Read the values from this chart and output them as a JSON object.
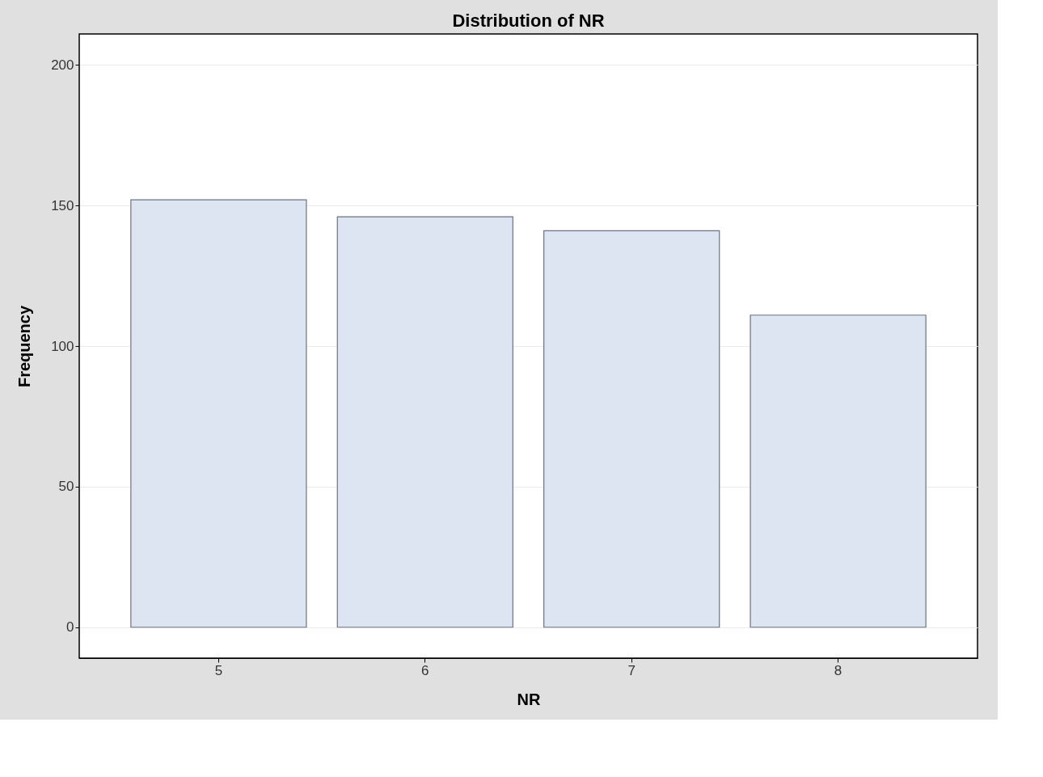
{
  "chart_data": {
    "type": "bar",
    "title": "Distribution of NR",
    "xlabel": "NR",
    "ylabel": "Frequency",
    "categories": [
      "5",
      "6",
      "7",
      "8"
    ],
    "series": [
      {
        "color": "#dce5f1",
        "values": [
          152,
          146,
          141,
          111
        ]
      }
    ],
    "ylim": [
      -11,
      211
    ],
    "yticks": [
      0,
      50,
      100,
      150,
      200
    ],
    "grid": "y",
    "legend": false
  }
}
